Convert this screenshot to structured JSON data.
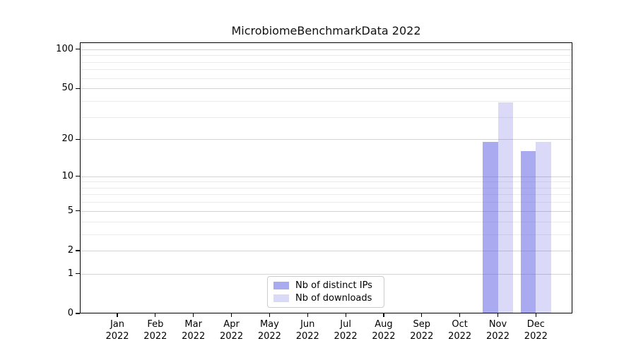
{
  "figure": {
    "title": "MicrobiomeBenchmarkData 2022",
    "background": "#ffffff"
  },
  "chart_data": {
    "type": "bar",
    "title": "MicrobiomeBenchmarkData 2022",
    "categories": [
      "Jan",
      "Feb",
      "Mar",
      "Apr",
      "May",
      "Jun",
      "Jul",
      "Aug",
      "Sep",
      "Oct",
      "Nov",
      "Dec"
    ],
    "category_year": "2022",
    "series": [
      {
        "name": "Nb of distinct IPs",
        "color": "rgba(85,85,225,0.50)",
        "values": [
          0,
          0,
          0,
          0,
          0,
          0,
          0,
          0,
          0,
          0,
          19,
          16
        ]
      },
      {
        "name": "Nb of downloads",
        "color": "rgba(85,85,225,0.22)",
        "values": [
          0,
          0,
          0,
          0,
          0,
          0,
          0,
          0,
          0,
          0,
          39,
          19
        ]
      }
    ],
    "yscale": "log10(1+x)",
    "ylim": [
      0,
      113
    ],
    "y_major_ticks": [
      0,
      1,
      2,
      5,
      10,
      20,
      50,
      100
    ],
    "y_minor_ticks": [
      3,
      4,
      6,
      7,
      8,
      9,
      30,
      40,
      60,
      70,
      80,
      90
    ],
    "grid": "horizontal",
    "legend_position": "lower center",
    "xlabel": "",
    "ylabel": ""
  },
  "colors": {
    "major_grid": "#d4d4d4",
    "minor_grid": "#ececec",
    "spine": "#000000",
    "text": "#000000"
  }
}
